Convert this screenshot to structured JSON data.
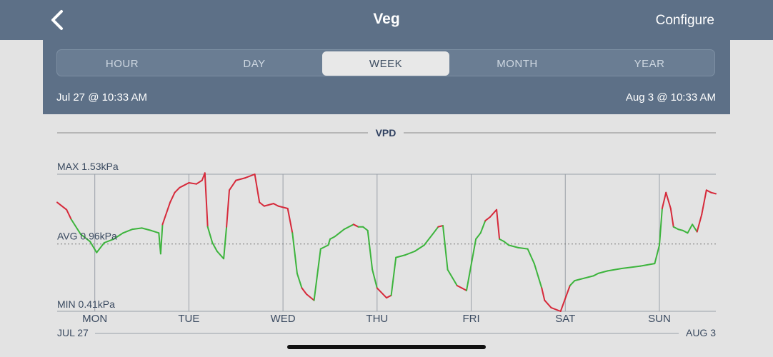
{
  "header": {
    "title": "Veg",
    "configure_label": "Configure",
    "back_icon": "chevron-left-icon"
  },
  "range_tabs": [
    {
      "label": "HOUR",
      "active": false
    },
    {
      "label": "DAY",
      "active": false
    },
    {
      "label": "WEEK",
      "active": true
    },
    {
      "label": "MONTH",
      "active": false
    },
    {
      "label": "YEAR",
      "active": false
    }
  ],
  "date_range": {
    "start": "Jul 27 @ 10:33 AM",
    "end": "Aug 3 @ 10:33 AM"
  },
  "colors": {
    "header_bg": "#5d7087",
    "in_range": "#3cb43c",
    "out_of_range": "#d6293a"
  },
  "chart_data": {
    "type": "line",
    "title": "VPD",
    "unit": "kPa",
    "max_label": "MAX 1.53kPa",
    "avg_label": "AVG 0.96kPa",
    "min_label": "MIN 0.41kPa",
    "ylim": [
      0.41,
      1.53
    ],
    "avg": 0.96,
    "xlim": [
      0,
      7
    ],
    "x_ticks": [
      0.4,
      1.4,
      2.4,
      3.4,
      4.4,
      5.4,
      6.4
    ],
    "x_tick_labels": [
      "MON",
      "TUE",
      "WED",
      "THU",
      "FRI",
      "SAT",
      "SUN"
    ],
    "start_label": "JUL 27",
    "end_label": "AUG 3",
    "green_band": [
      0.63,
      1.1
    ],
    "series": [
      {
        "x": [
          0,
          0.1,
          0.15,
          0.25,
          0.35,
          0.42,
          0.5,
          0.6,
          0.7,
          0.8,
          0.9,
          1.0,
          1.08,
          1.1,
          1.12,
          1.2,
          1.25,
          1.3,
          1.4,
          1.48,
          1.54,
          1.57,
          1.6,
          1.65,
          1.7,
          1.77,
          1.8,
          1.83,
          1.9,
          2.0,
          2.1,
          2.15,
          2.2,
          2.25,
          2.3,
          2.35,
          2.45,
          2.5,
          2.55,
          2.6,
          2.65,
          2.73,
          2.8,
          2.88,
          2.9,
          2.95,
          3.0,
          3.05,
          3.15,
          3.2,
          3.25,
          3.3,
          3.35,
          3.4,
          3.5,
          3.55,
          3.6,
          3.7,
          3.8,
          3.9,
          4.0,
          4.05,
          4.1,
          4.15,
          4.25,
          4.3,
          4.35,
          4.45,
          4.5,
          4.55,
          4.6,
          4.67,
          4.7,
          4.75,
          4.8,
          4.9,
          5.0,
          5.07,
          5.15,
          5.18,
          5.25,
          5.35,
          5.45,
          5.5,
          5.55,
          5.6,
          5.65,
          5.7,
          5.75,
          5.85,
          6.0,
          6.2,
          6.35,
          6.4,
          6.43,
          6.47,
          6.52,
          6.55,
          6.6,
          6.65,
          6.7,
          6.75,
          6.8,
          6.85,
          6.9,
          6.95,
          7.0
        ],
        "y": [
          1.3,
          1.24,
          1.16,
          1.04,
          0.98,
          0.89,
          0.97,
          1.0,
          1.05,
          1.08,
          1.09,
          1.07,
          1.05,
          0.88,
          1.12,
          1.3,
          1.38,
          1.42,
          1.46,
          1.45,
          1.48,
          1.54,
          1.1,
          0.97,
          0.9,
          0.84,
          1.1,
          1.4,
          1.48,
          1.5,
          1.53,
          1.3,
          1.27,
          1.28,
          1.29,
          1.27,
          1.25,
          1.05,
          0.72,
          0.6,
          0.55,
          0.5,
          0.92,
          0.95,
          1.0,
          1.02,
          1.05,
          1.08,
          1.12,
          1.1,
          1.1,
          1.07,
          0.75,
          0.6,
          0.52,
          0.54,
          0.85,
          0.87,
          0.9,
          0.95,
          1.05,
          1.1,
          1.11,
          0.75,
          0.62,
          0.6,
          0.58,
          1.0,
          1.05,
          1.15,
          1.18,
          1.24,
          1.0,
          0.98,
          0.95,
          0.93,
          0.92,
          0.8,
          0.6,
          0.5,
          0.44,
          0.41,
          0.62,
          0.66,
          0.67,
          0.68,
          0.69,
          0.7,
          0.72,
          0.74,
          0.76,
          0.78,
          0.8,
          0.95,
          1.25,
          1.38,
          1.25,
          1.1,
          1.08,
          1.07,
          1.05,
          1.12,
          1.06,
          1.2,
          1.4,
          1.38,
          1.37
        ]
      }
    ]
  }
}
